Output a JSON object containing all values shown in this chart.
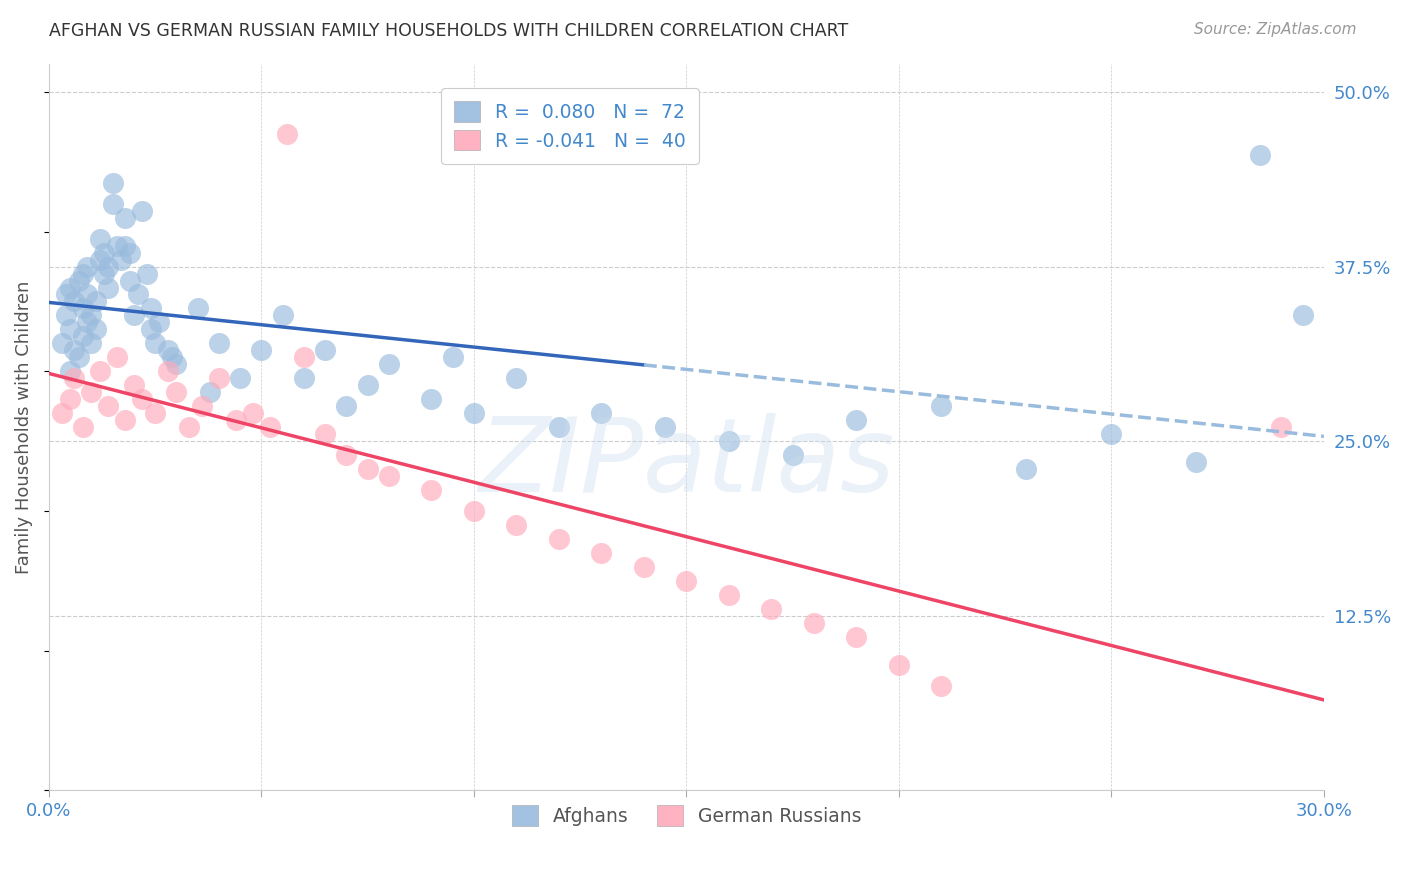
{
  "title": "AFGHAN VS GERMAN RUSSIAN FAMILY HOUSEHOLDS WITH CHILDREN CORRELATION CHART",
  "source": "Source: ZipAtlas.com",
  "ylabel": "Family Households with Children",
  "xlim": [
    0.0,
    0.3
  ],
  "ylim": [
    0.0,
    0.52
  ],
  "xticks": [
    0.0,
    0.05,
    0.1,
    0.15,
    0.2,
    0.25,
    0.3
  ],
  "yticks_right": [
    0.5,
    0.375,
    0.25,
    0.125
  ],
  "ytick_labels_right": [
    "50.0%",
    "37.5%",
    "25.0%",
    "12.5%"
  ],
  "watermark": "ZIPatlas",
  "afghans_x": [
    0.003,
    0.004,
    0.004,
    0.005,
    0.005,
    0.005,
    0.006,
    0.006,
    0.007,
    0.007,
    0.008,
    0.008,
    0.008,
    0.009,
    0.009,
    0.009,
    0.01,
    0.01,
    0.011,
    0.011,
    0.012,
    0.012,
    0.013,
    0.013,
    0.014,
    0.014,
    0.015,
    0.015,
    0.016,
    0.017,
    0.018,
    0.018,
    0.019,
    0.019,
    0.02,
    0.021,
    0.022,
    0.023,
    0.024,
    0.024,
    0.025,
    0.026,
    0.028,
    0.029,
    0.03,
    0.035,
    0.038,
    0.04,
    0.045,
    0.05,
    0.055,
    0.06,
    0.065,
    0.07,
    0.075,
    0.08,
    0.09,
    0.095,
    0.1,
    0.11,
    0.12,
    0.13,
    0.145,
    0.16,
    0.175,
    0.19,
    0.21,
    0.23,
    0.25,
    0.27,
    0.285,
    0.295
  ],
  "afghans_y": [
    0.32,
    0.34,
    0.355,
    0.3,
    0.33,
    0.36,
    0.315,
    0.35,
    0.31,
    0.365,
    0.325,
    0.345,
    0.37,
    0.335,
    0.355,
    0.375,
    0.32,
    0.34,
    0.33,
    0.35,
    0.38,
    0.395,
    0.37,
    0.385,
    0.36,
    0.375,
    0.42,
    0.435,
    0.39,
    0.38,
    0.39,
    0.41,
    0.385,
    0.365,
    0.34,
    0.355,
    0.415,
    0.37,
    0.345,
    0.33,
    0.32,
    0.335,
    0.315,
    0.31,
    0.305,
    0.345,
    0.285,
    0.32,
    0.295,
    0.315,
    0.34,
    0.295,
    0.315,
    0.275,
    0.29,
    0.305,
    0.28,
    0.31,
    0.27,
    0.295,
    0.26,
    0.27,
    0.26,
    0.25,
    0.24,
    0.265,
    0.275,
    0.23,
    0.255,
    0.235,
    0.455,
    0.34
  ],
  "german_russians_x": [
    0.003,
    0.005,
    0.006,
    0.008,
    0.01,
    0.012,
    0.014,
    0.016,
    0.018,
    0.02,
    0.022,
    0.025,
    0.028,
    0.03,
    0.033,
    0.036,
    0.04,
    0.044,
    0.048,
    0.052,
    0.056,
    0.06,
    0.065,
    0.07,
    0.075,
    0.08,
    0.09,
    0.1,
    0.11,
    0.12,
    0.13,
    0.14,
    0.15,
    0.16,
    0.17,
    0.18,
    0.19,
    0.2,
    0.21,
    0.29
  ],
  "german_russians_y": [
    0.27,
    0.28,
    0.295,
    0.26,
    0.285,
    0.3,
    0.275,
    0.31,
    0.265,
    0.29,
    0.28,
    0.27,
    0.3,
    0.285,
    0.26,
    0.275,
    0.295,
    0.265,
    0.27,
    0.26,
    0.47,
    0.31,
    0.255,
    0.24,
    0.23,
    0.225,
    0.215,
    0.2,
    0.19,
    0.18,
    0.17,
    0.16,
    0.15,
    0.14,
    0.13,
    0.12,
    0.11,
    0.09,
    0.075,
    0.26
  ],
  "blue_line_color": "#3366bb",
  "pink_line_color": "#ee4466",
  "blue_dashed_color": "#99bbdd",
  "scatter_blue": "#99bbdd",
  "scatter_pink": "#ffaabb",
  "grid_color": "#cccccc",
  "title_color": "#333333",
  "axis_label_color": "#555555",
  "right_tick_color": "#4488cc",
  "bottom_tick_color": "#4488cc",
  "watermark_color": "#ccddee",
  "source_color": "#999999",
  "legend_r_color_blue": "#3366bb",
  "legend_r_color_pink": "#ee4466",
  "legend_n_color_blue": "#3366bb",
  "legend_n_color_pink": "#ee4466"
}
